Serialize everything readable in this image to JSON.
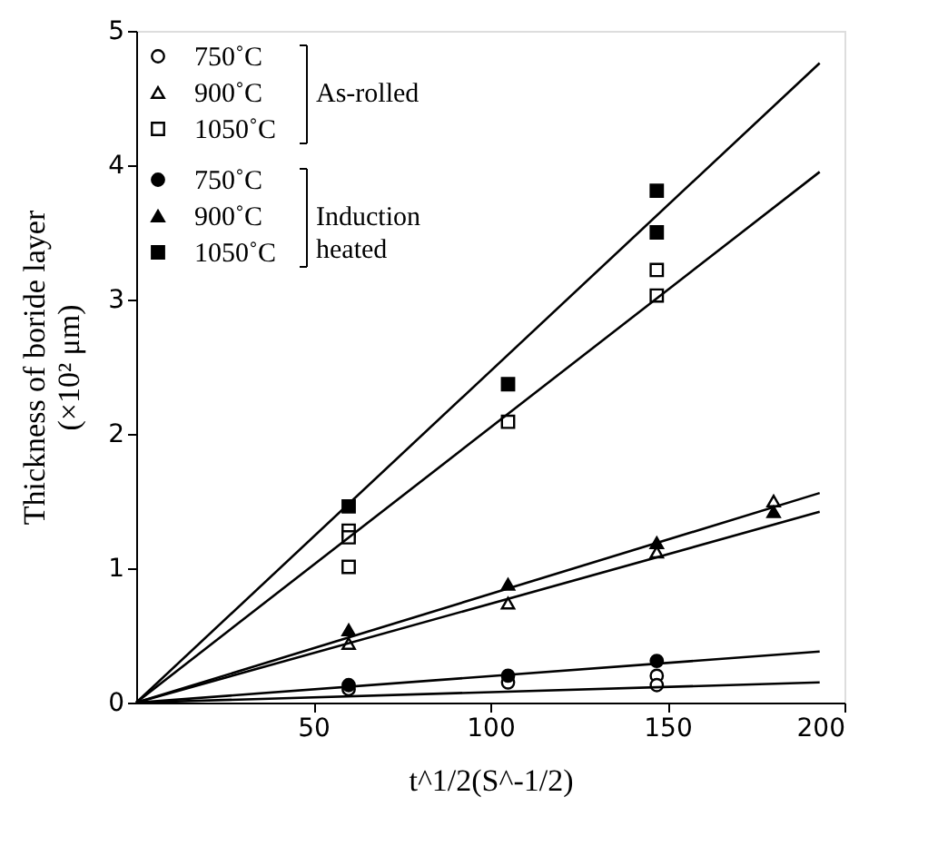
{
  "chart_data": {
    "type": "scatter",
    "xlabel": "t^1/2(S^-1/2)",
    "ylabel": "Thickness of boride layer\n(×10² μm)",
    "xlim": [
      0,
      200
    ],
    "ylim": [
      0,
      5
    ],
    "xticks": [
      50,
      100,
      150,
      200
    ],
    "yticks": [
      0,
      1,
      2,
      3,
      4,
      5
    ],
    "grid": false,
    "legend": "top left",
    "annotations": [
      "As-rolled",
      "Induction heated"
    ],
    "series": [
      {
        "name": "750˚C",
        "color": "#ffffff",
        "marker": "circle",
        "x": [
          60,
          105,
          147,
          147
        ],
        "values": [
          0.1,
          0.15,
          0.2,
          0.13
        ]
      },
      {
        "name": "900˚C",
        "color": "#ffffff",
        "marker": "triangle",
        "x": [
          60,
          105,
          147,
          180
        ],
        "values": [
          0.44,
          0.74,
          1.12,
          1.5
        ]
      },
      {
        "name": "1050˚C",
        "color": "#ffffff",
        "marker": "square",
        "x": [
          60,
          60,
          60,
          105,
          147,
          147
        ],
        "values": [
          1.28,
          1.23,
          1.01,
          2.09,
          3.22,
          3.03
        ]
      },
      {
        "name": "750˚C",
        "color": "#000000",
        "marker": "circle",
        "x": [
          60,
          105,
          147
        ],
        "values": [
          0.13,
          0.2,
          0.31
        ]
      },
      {
        "name": "900˚C",
        "color": "#000000",
        "marker": "triangle",
        "x": [
          60,
          105,
          147,
          180
        ],
        "values": [
          0.54,
          0.88,
          1.19,
          1.42
        ]
      },
      {
        "name": "1050˚C",
        "color": "#000000",
        "marker": "square",
        "x": [
          60,
          105,
          147,
          147
        ],
        "values": [
          1.46,
          2.37,
          3.81,
          3.5
        ]
      },
      {
        "type": "line",
        "color": "#000000",
        "x": [
          0,
          193
        ],
        "values": [
          0,
          4.76
        ]
      },
      {
        "type": "line",
        "color": "#000000",
        "x": [
          0,
          193
        ],
        "values": [
          0,
          3.95
        ]
      },
      {
        "type": "line",
        "color": "#000000",
        "x": [
          0,
          193
        ],
        "values": [
          0,
          1.56
        ]
      },
      {
        "type": "line",
        "color": "#000000",
        "x": [
          0,
          193
        ],
        "values": [
          0,
          1.42
        ]
      },
      {
        "type": "line",
        "color": "#000000",
        "x": [
          0,
          193
        ],
        "values": [
          0,
          0.38
        ]
      },
      {
        "type": "line",
        "color": "#000000",
        "x": [
          0,
          193
        ],
        "values": [
          0,
          0.15
        ]
      }
    ]
  }
}
